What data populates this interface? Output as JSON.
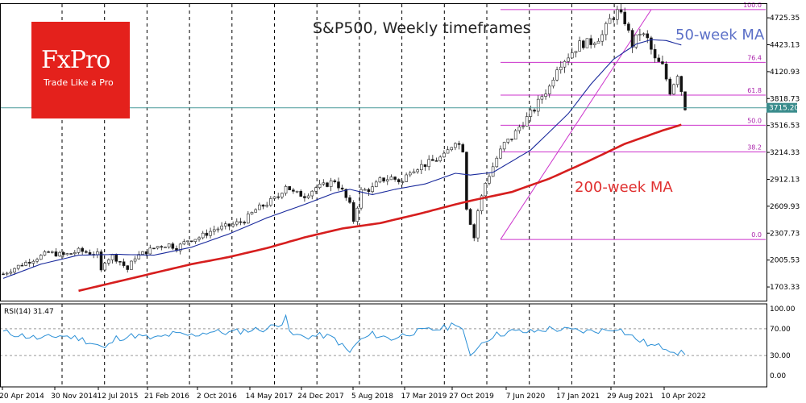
{
  "brand": {
    "name": "FxPro",
    "tagline": "Trade Like a Pro"
  },
  "chart_data": {
    "type": "candlestick",
    "title": "S&P500, Weekly timeframes",
    "annotations": {
      "ma50": "50-week MA",
      "ma200": "200-week MA"
    },
    "current_price": "3715.20",
    "y_ticks": [
      "4725.35",
      "4423.13",
      "4120.93",
      "3818.73",
      "3516.53",
      "3214.33",
      "2912.13",
      "2609.93",
      "2307.73",
      "2005.53",
      "1703.33"
    ],
    "x_ticks": [
      "20 Apr 2014",
      "30 Nov 2014",
      "12 Jul 2015",
      "21 Feb 2016",
      "2 Oct 2016",
      "14 May 2017",
      "24 Dec 2017",
      "5 Aug 2018",
      "17 Mar 2019",
      "27 Oct 2019",
      "7 Jun 2020",
      "17 Jan 2021",
      "29 Aug 2021",
      "10 Apr 2022"
    ],
    "fib_levels": [
      {
        "label": "100.0",
        "price": 4818
      },
      {
        "label": "76.4",
        "price": 4225
      },
      {
        "label": "61.8",
        "price": 3858
      },
      {
        "label": "50.0",
        "price": 3519
      },
      {
        "label": "38.2",
        "price": 3220
      },
      {
        "label": "0.0",
        "price": 2237
      }
    ],
    "price_range": [
      1550,
      4880
    ],
    "price_keypoints": [
      [
        0,
        1850
      ],
      [
        5,
        1960
      ],
      [
        10,
        2050
      ],
      [
        12,
        2090
      ],
      [
        16,
        2060
      ],
      [
        18,
        2080
      ],
      [
        20,
        2110
      ],
      [
        25,
        2070
      ],
      [
        26,
        1880
      ],
      [
        27,
        2000
      ],
      [
        29,
        2050
      ],
      [
        31,
        1990
      ],
      [
        33,
        1900
      ],
      [
        35,
        2040
      ],
      [
        38,
        2100
      ],
      [
        41,
        2160
      ],
      [
        44,
        2180
      ],
      [
        46,
        2140
      ],
      [
        49,
        2230
      ],
      [
        52,
        2260
      ],
      [
        56,
        2350
      ],
      [
        60,
        2390
      ],
      [
        64,
        2450
      ],
      [
        67,
        2570
      ],
      [
        70,
        2640
      ],
      [
        73,
        2720
      ],
      [
        75,
        2850
      ],
      [
        77,
        2760
      ],
      [
        80,
        2730
      ],
      [
        83,
        2820
      ],
      [
        85,
        2840
      ],
      [
        88,
        2900
      ],
      [
        90,
        2780
      ],
      [
        92,
        2620
      ],
      [
        93,
        2450
      ],
      [
        95,
        2780
      ],
      [
        98,
        2810
      ],
      [
        100,
        2900
      ],
      [
        103,
        2930
      ],
      [
        106,
        2880
      ],
      [
        108,
        3020
      ],
      [
        112,
        3080
      ],
      [
        117,
        3170
      ],
      [
        120,
        3350
      ],
      [
        122,
        3250
      ],
      [
        123,
        2600
      ],
      [
        125,
        2260
      ],
      [
        126,
        2560
      ],
      [
        128,
        2870
      ],
      [
        131,
        3150
      ],
      [
        133,
        3310
      ],
      [
        135,
        3380
      ],
      [
        137,
        3500
      ],
      [
        139,
        3600
      ],
      [
        141,
        3700
      ],
      [
        143,
        3850
      ],
      [
        145,
        3950
      ],
      [
        147,
        4180
      ],
      [
        150,
        4300
      ],
      [
        153,
        4430
      ],
      [
        156,
        4450
      ],
      [
        159,
        4530
      ],
      [
        161,
        4700
      ],
      [
        163,
        4790
      ],
      [
        165,
        4690
      ],
      [
        167,
        4420
      ],
      [
        169,
        4560
      ],
      [
        171,
        4480
      ],
      [
        173,
        4250
      ],
      [
        175,
        4180
      ],
      [
        177,
        3900
      ],
      [
        179,
        4100
      ],
      [
        181,
        3720
      ]
    ],
    "ma50_keypoints": [
      [
        0,
        1800
      ],
      [
        10,
        1960
      ],
      [
        20,
        2060
      ],
      [
        30,
        2070
      ],
      [
        40,
        2060
      ],
      [
        50,
        2150
      ],
      [
        60,
        2300
      ],
      [
        70,
        2480
      ],
      [
        80,
        2630
      ],
      [
        88,
        2760
      ],
      [
        92,
        2800
      ],
      [
        98,
        2740
      ],
      [
        104,
        2800
      ],
      [
        112,
        2860
      ],
      [
        120,
        2980
      ],
      [
        124,
        2960
      ],
      [
        130,
        2990
      ],
      [
        140,
        3240
      ],
      [
        150,
        3650
      ],
      [
        156,
        3980
      ],
      [
        162,
        4260
      ],
      [
        168,
        4430
      ],
      [
        172,
        4480
      ],
      [
        176,
        4470
      ],
      [
        180,
        4420
      ]
    ],
    "ma200_keypoints": [
      [
        20,
        1660
      ],
      [
        30,
        1760
      ],
      [
        40,
        1860
      ],
      [
        50,
        1960
      ],
      [
        60,
        2040
      ],
      [
        70,
        2140
      ],
      [
        80,
        2260
      ],
      [
        90,
        2360
      ],
      [
        100,
        2420
      ],
      [
        110,
        2520
      ],
      [
        120,
        2630
      ],
      [
        125,
        2680
      ],
      [
        135,
        2770
      ],
      [
        145,
        2920
      ],
      [
        155,
        3110
      ],
      [
        165,
        3310
      ],
      [
        175,
        3460
      ],
      [
        180,
        3525
      ]
    ],
    "rsi": {
      "label": "RSI(14) 31.47",
      "y_ticks": [
        "100.00",
        "70.00",
        "30.00",
        "0.00"
      ],
      "keypoints": [
        [
          0,
          65
        ],
        [
          5,
          60
        ],
        [
          10,
          55
        ],
        [
          15,
          60
        ],
        [
          20,
          56
        ],
        [
          25,
          46
        ],
        [
          27,
          40
        ],
        [
          30,
          56
        ],
        [
          35,
          60
        ],
        [
          40,
          55
        ],
        [
          45,
          62
        ],
        [
          50,
          60
        ],
        [
          55,
          66
        ],
        [
          60,
          64
        ],
        [
          65,
          68
        ],
        [
          70,
          70
        ],
        [
          74,
          80
        ],
        [
          75,
          92
        ],
        [
          76,
          62
        ],
        [
          80,
          58
        ],
        [
          85,
          60
        ],
        [
          88,
          55
        ],
        [
          92,
          34
        ],
        [
          94,
          50
        ],
        [
          98,
          62
        ],
        [
          103,
          55
        ],
        [
          108,
          64
        ],
        [
          113,
          68
        ],
        [
          118,
          72
        ],
        [
          120,
          80
        ],
        [
          122,
          68
        ],
        [
          123,
          45
        ],
        [
          124,
          28
        ],
        [
          126,
          45
        ],
        [
          130,
          60
        ],
        [
          135,
          66
        ],
        [
          140,
          65
        ],
        [
          145,
          70
        ],
        [
          150,
          68
        ],
        [
          155,
          66
        ],
        [
          160,
          68
        ],
        [
          163,
          72
        ],
        [
          165,
          64
        ],
        [
          168,
          55
        ],
        [
          172,
          45
        ],
        [
          176,
          42
        ],
        [
          179,
          35
        ],
        [
          181,
          31.47
        ]
      ]
    }
  }
}
